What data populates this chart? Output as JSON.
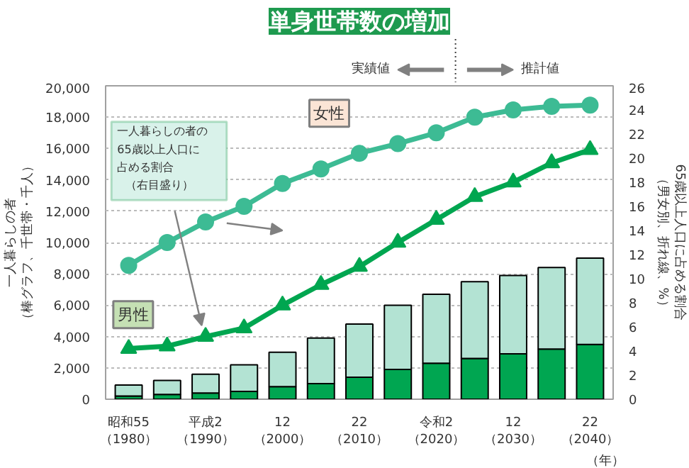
{
  "chart_data": {
    "type": "bar",
    "title": "単身世帯数の増加",
    "ylabel": "一人暮らしの者（棒グラフ、千世帯・千人）",
    "y2label": "65歳以上人口に占める割合（男女別、折れ線、%）",
    "categories": [
      "昭和55（1980）",
      null,
      "平成2（1990）",
      null,
      "12（2000）",
      null,
      "22（2010）",
      null,
      "令和2（2020）",
      null,
      "12（2030）",
      null,
      "22（2040）"
    ],
    "stacked": true,
    "series": [
      {
        "color": "#00a651",
        "values": [
          200,
          300,
          400,
          500,
          800,
          1000,
          1400,
          1900,
          2300,
          2600,
          2900,
          3200,
          3500
        ]
      },
      {
        "color": "#b3e3d3",
        "values": [
          700,
          900,
          1200,
          1700,
          2200,
          2900,
          3400,
          4100,
          4400,
          4900,
          5000,
          5200,
          5500
        ]
      },
      {
        "type": "line",
        "name": "女性",
        "axis": "y2",
        "marker": "circle",
        "color": "#3dbb94",
        "values": [
          11.1,
          13.0,
          14.7,
          16.0,
          17.9,
          19.1,
          20.4,
          21.2,
          22.1,
          23.4,
          24.0,
          24.3,
          24.4
        ]
      },
      {
        "type": "line",
        "name": "男性",
        "axis": "y2",
        "marker": "triangle",
        "color": "#00a650",
        "values": [
          4.2,
          4.4,
          5.2,
          5.9,
          7.8,
          9.5,
          11.0,
          13.0,
          14.9,
          16.8,
          18.0,
          19.6,
          20.7
        ]
      }
    ],
    "ylim": [
      0,
      20000
    ],
    "yticks": [
      {
        "value": 0,
        "label": "0"
      },
      {
        "value": 2000,
        "label": "2,000"
      },
      {
        "value": 4000,
        "label": "4,000"
      },
      {
        "value": 6000,
        "label": "6,000"
      },
      {
        "value": 8000,
        "label": "8,000"
      },
      {
        "value": 10000,
        "label": "10,000"
      },
      {
        "value": 12000,
        "label": "12,000"
      },
      {
        "value": 14000,
        "label": "14,000"
      },
      {
        "value": 16000,
        "label": "16,000"
      },
      {
        "value": 18000,
        "label": "18,000"
      },
      {
        "value": 20000,
        "label": "20,000"
      }
    ],
    "y2lim": [
      0,
      26
    ],
    "y2ticks": [
      0,
      2,
      4,
      6,
      8,
      10,
      12,
      14,
      16,
      18,
      20,
      22,
      24,
      26
    ],
    "annotations": [
      "一人暮らしの者の",
      "65歳以上人口に",
      "占める割合",
      "（右目盛り）",
      "実績値",
      "推計値",
      "（年）"
    ],
    "grid": "y"
  }
}
